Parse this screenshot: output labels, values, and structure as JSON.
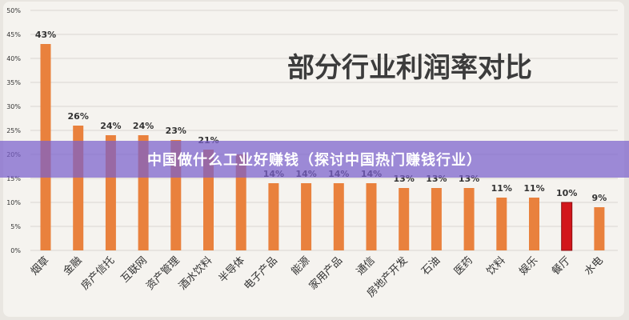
{
  "chart_data": {
    "type": "bar",
    "title": "部分行业利润率对比",
    "categories": [
      "烟草",
      "金融",
      "房产信托",
      "互联网",
      "资产管理",
      "酒水饮料",
      "半导体",
      "电子产品",
      "能源",
      "家用产品",
      "通信",
      "房地产开发",
      "石油",
      "医药",
      "饮料",
      "娱乐",
      "餐厅",
      "水电"
    ],
    "values": [
      43,
      26,
      24,
      24,
      23,
      21,
      20,
      14,
      14,
      14,
      14,
      13,
      13,
      13,
      11,
      11,
      10,
      9
    ],
    "value_labels": [
      "43%",
      "26%",
      "24%",
      "24%",
      "23%",
      "21%",
      "",
      "14%",
      "14%",
      "14%",
      "14%",
      "13%",
      "13%",
      "13%",
      "11%",
      "11%",
      "10%",
      "9%"
    ],
    "ylim": [
      0,
      50
    ],
    "yticks": [
      "0%",
      "5%",
      "10%",
      "15%",
      "20%",
      "25%",
      "30%",
      "35%",
      "40%",
      "45%",
      "50%"
    ],
    "grid": true,
    "colors": {
      "bar": "#e9813d",
      "highlight": "#d2161b",
      "highlight_index": 16,
      "grid": "#d9d6d1",
      "text": "#333333"
    }
  },
  "banner": {
    "text": "中国做什么工业好赚钱（探讨中国热门赚钱行业）"
  }
}
